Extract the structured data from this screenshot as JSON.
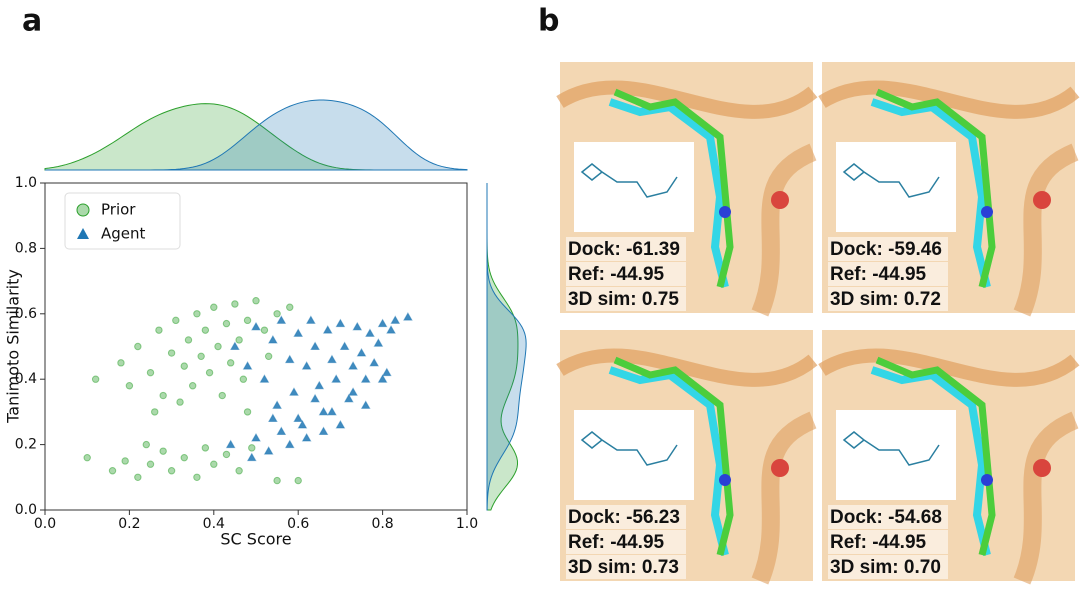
{
  "chart_data": {
    "type": "scatter",
    "panel_label": "a",
    "x_label": "SC Score",
    "y_label": "Tanimoto Similarity",
    "xlim": [
      0,
      1
    ],
    "ylim": [
      0,
      1
    ],
    "xticks": [
      {
        "value": 0,
        "label": "0.0"
      },
      0.2,
      0.4,
      0.6,
      0.8,
      {
        "value": 1,
        "label": "1.0"
      }
    ],
    "yticks": [
      {
        "value": 0,
        "label": "0.0"
      },
      0.2,
      0.4,
      0.6,
      0.8,
      {
        "value": 1,
        "label": "1.0"
      }
    ],
    "legend": "upper left",
    "series": [
      {
        "name": "Prior",
        "color": "#2ca02c",
        "marker": "circle",
        "x": [
          0.12,
          0.18,
          0.2,
          0.22,
          0.25,
          0.27,
          0.28,
          0.3,
          0.31,
          0.33,
          0.34,
          0.35,
          0.36,
          0.37,
          0.38,
          0.39,
          0.4,
          0.41,
          0.42,
          0.43,
          0.44,
          0.45,
          0.46,
          0.47,
          0.48,
          0.5,
          0.52,
          0.53,
          0.55,
          0.58,
          0.26,
          0.32,
          0.48,
          0.1,
          0.16,
          0.19,
          0.22,
          0.25,
          0.28,
          0.3,
          0.33,
          0.36,
          0.38,
          0.4,
          0.43,
          0.46,
          0.49,
          0.55,
          0.6,
          0.24
        ],
        "y": [
          0.4,
          0.45,
          0.38,
          0.5,
          0.42,
          0.55,
          0.35,
          0.48,
          0.58,
          0.44,
          0.52,
          0.38,
          0.6,
          0.47,
          0.55,
          0.42,
          0.62,
          0.5,
          0.35,
          0.57,
          0.45,
          0.63,
          0.52,
          0.4,
          0.58,
          0.64,
          0.55,
          0.47,
          0.6,
          0.62,
          0.3,
          0.33,
          0.3,
          0.16,
          0.12,
          0.15,
          0.1,
          0.14,
          0.18,
          0.12,
          0.16,
          0.1,
          0.19,
          0.14,
          0.17,
          0.12,
          0.19,
          0.09,
          0.09,
          0.2
        ]
      },
      {
        "name": "Agent",
        "color": "#1f77b4",
        "marker": "triangle",
        "x": [
          0.45,
          0.48,
          0.5,
          0.52,
          0.54,
          0.55,
          0.56,
          0.58,
          0.59,
          0.6,
          0.61,
          0.62,
          0.63,
          0.64,
          0.65,
          0.66,
          0.67,
          0.68,
          0.69,
          0.7,
          0.71,
          0.72,
          0.73,
          0.74,
          0.75,
          0.76,
          0.77,
          0.78,
          0.79,
          0.8,
          0.81,
          0.82,
          0.83,
          0.86,
          0.5,
          0.53,
          0.56,
          0.58,
          0.6,
          0.62,
          0.64,
          0.66,
          0.68,
          0.7,
          0.73,
          0.76,
          0.49,
          0.54,
          0.44,
          0.8
        ],
        "y": [
          0.5,
          0.44,
          0.56,
          0.4,
          0.52,
          0.32,
          0.58,
          0.46,
          0.36,
          0.54,
          0.26,
          0.44,
          0.58,
          0.5,
          0.38,
          0.3,
          0.55,
          0.46,
          0.4,
          0.57,
          0.5,
          0.34,
          0.44,
          0.56,
          0.48,
          0.4,
          0.54,
          0.45,
          0.51,
          0.57,
          0.42,
          0.55,
          0.58,
          0.59,
          0.22,
          0.18,
          0.24,
          0.2,
          0.28,
          0.22,
          0.34,
          0.24,
          0.3,
          0.26,
          0.36,
          0.32,
          0.16,
          0.28,
          0.2,
          0.4
        ]
      }
    ]
  },
  "panel_b": {
    "label": "b",
    "poses": [
      {
        "dock": "Dock: -61.39",
        "ref": "Ref: -44.95",
        "sim": "3D sim: 0.75"
      },
      {
        "dock": "Dock: -59.46",
        "ref": "Ref: -44.95",
        "sim": "3D sim: 0.72"
      },
      {
        "dock": "Dock: -56.23",
        "ref": "Ref: -44.95",
        "sim": "3D sim: 0.73"
      },
      {
        "dock": "Dock: -54.68",
        "ref": "Ref: -44.95",
        "sim": "3D sim: 0.70"
      }
    ]
  }
}
